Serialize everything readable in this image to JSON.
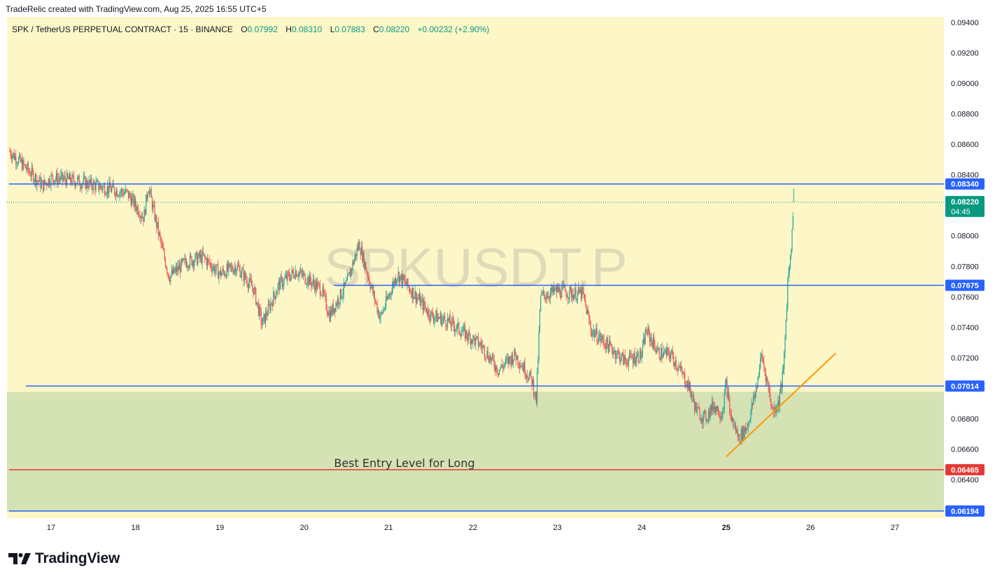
{
  "header": {
    "credit": "TradeRelic created with TradingView.com, Aug 25, 2025 16:55 UTC+5"
  },
  "legend": {
    "symbol": "SPK / TetherUS PERPETUAL CONTRACT · 15 · BINANCE",
    "open_label": "O",
    "open": "0.07992",
    "high_label": "H",
    "high": "0.08310",
    "low_label": "L",
    "low": "0.07883",
    "close_label": "C",
    "close": "0.08220",
    "change": "+0.00232 (+2.90%)"
  },
  "watermark": "SPKUSDT.P",
  "footer": {
    "brand": "TradingView"
  },
  "colors": {
    "background_upper": "#fdf7c8",
    "zone_fill": "#d5e2b4",
    "up": "#26a69a",
    "down": "#ef5350",
    "blue_line": "#2962ff",
    "red_line": "#e53935",
    "trendline": "#ff9800",
    "current_price": "#089981"
  },
  "chart_data": {
    "type": "candlestick",
    "interval": "15",
    "y_axis_ticks": [
      "0.09400",
      "0.09200",
      "0.09000",
      "0.08800",
      "0.08600",
      "0.08400",
      "0.08000",
      "0.07800",
      "0.07600",
      "0.07400",
      "0.07200",
      "0.06800",
      "0.06600",
      "0.06400"
    ],
    "ylim": [
      0.061,
      0.0944
    ],
    "x_axis_ticks": [
      "17",
      "18",
      "19",
      "20",
      "21",
      "22",
      "23",
      "24",
      "25",
      "26",
      "27"
    ],
    "xlim_days": [
      16.5,
      27.6
    ],
    "price_path": [
      [
        16.5,
        0.0856
      ],
      [
        16.9,
        0.0833
      ],
      [
        17.0,
        0.0838
      ],
      [
        17.3,
        0.0836
      ],
      [
        17.6,
        0.0832
      ],
      [
        17.9,
        0.0828
      ],
      [
        18.1,
        0.0812
      ],
      [
        18.15,
        0.0833
      ],
      [
        18.3,
        0.0795
      ],
      [
        18.4,
        0.0773
      ],
      [
        18.6,
        0.0783
      ],
      [
        18.8,
        0.0786
      ],
      [
        19.0,
        0.0775
      ],
      [
        19.2,
        0.078
      ],
      [
        19.4,
        0.0765
      ],
      [
        19.5,
        0.0742
      ],
      [
        19.7,
        0.0768
      ],
      [
        19.9,
        0.0777
      ],
      [
        20.2,
        0.0765
      ],
      [
        20.3,
        0.0748
      ],
      [
        20.5,
        0.0768
      ],
      [
        20.65,
        0.0795
      ],
      [
        20.8,
        0.0765
      ],
      [
        20.9,
        0.0746
      ],
      [
        21.1,
        0.0775
      ],
      [
        21.3,
        0.0762
      ],
      [
        21.5,
        0.0748
      ],
      [
        21.7,
        0.0744
      ],
      [
        21.9,
        0.0736
      ],
      [
        22.1,
        0.0728
      ],
      [
        22.3,
        0.0712
      ],
      [
        22.5,
        0.0722
      ],
      [
        22.7,
        0.0705
      ],
      [
        22.75,
        0.0692
      ],
      [
        22.8,
        0.076
      ],
      [
        23.0,
        0.0764
      ],
      [
        23.2,
        0.0762
      ],
      [
        23.3,
        0.0762
      ],
      [
        23.4,
        0.0738
      ],
      [
        23.6,
        0.0728
      ],
      [
        23.8,
        0.0718
      ],
      [
        24.0,
        0.0722
      ],
      [
        24.05,
        0.0738
      ],
      [
        24.2,
        0.0723
      ],
      [
        24.35,
        0.0722
      ],
      [
        24.45,
        0.0712
      ],
      [
        24.55,
        0.0702
      ],
      [
        24.65,
        0.0685
      ],
      [
        24.75,
        0.068
      ],
      [
        24.85,
        0.0689
      ],
      [
        24.95,
        0.0683
      ],
      [
        25.0,
        0.0703
      ],
      [
        25.05,
        0.0682
      ],
      [
        25.15,
        0.0667
      ],
      [
        25.25,
        0.0675
      ],
      [
        25.35,
        0.0698
      ],
      [
        25.42,
        0.0722
      ],
      [
        25.5,
        0.07
      ],
      [
        25.55,
        0.0685
      ],
      [
        25.62,
        0.069
      ],
      [
        25.68,
        0.0712
      ],
      [
        25.73,
        0.077
      ],
      [
        25.78,
        0.08
      ],
      [
        25.8,
        0.0822
      ]
    ],
    "last_candle_high": 0.0831,
    "horizontal_levels": [
      {
        "price_label": "0.08340",
        "color": "#2962ff",
        "start_day": 16.5
      },
      {
        "price_label": "0.07675",
        "color": "#2962ff",
        "start_day": 20.35
      },
      {
        "price_label": "0.07014",
        "color": "#2962ff",
        "start_day": 16.7
      },
      {
        "price_label": "0.06465",
        "color": "#e53935",
        "start_day": 16.5
      },
      {
        "price_label": "0.06194",
        "color": "#2962ff",
        "start_day": 16.5
      }
    ],
    "current_price": {
      "price_label": "0.08220",
      "countdown": "04:45"
    },
    "zone": {
      "top": 0.06975,
      "bottom": 0.0619
    },
    "zone_label": "Best Entry Level for Long",
    "trendline": {
      "start": [
        25.0,
        0.0655
      ],
      "end": [
        26.3,
        0.0723
      ]
    },
    "grid": false
  }
}
